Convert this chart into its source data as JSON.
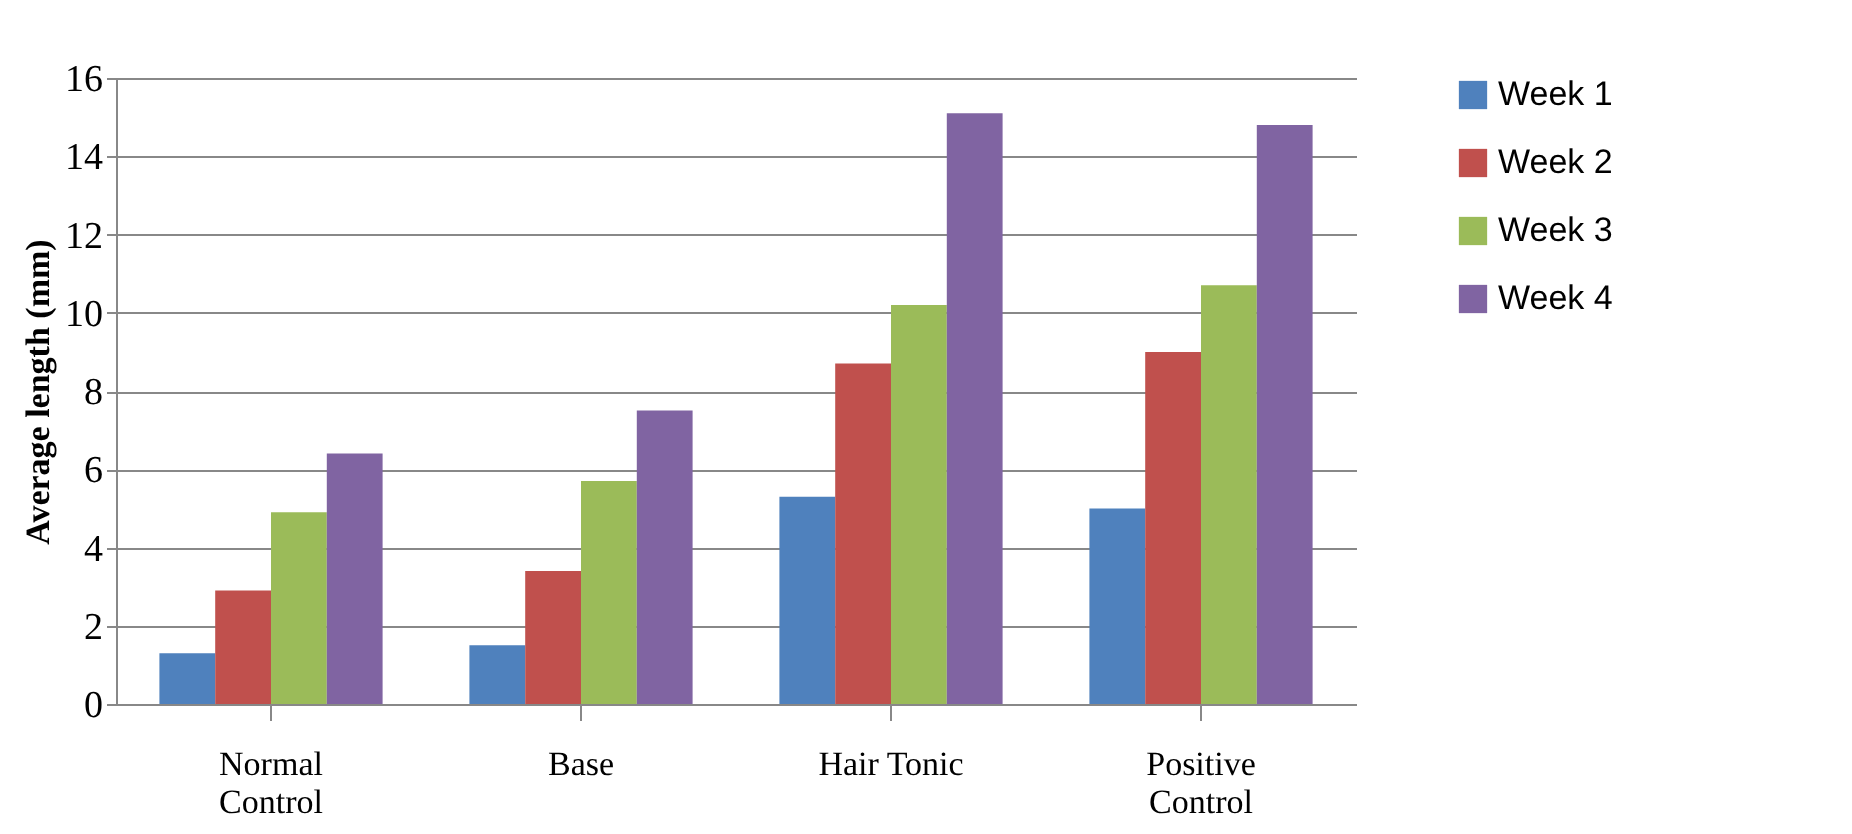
{
  "chart_data": {
    "type": "bar",
    "ylabel": "Average length (mm)",
    "categories": [
      "Normal Control",
      "Base",
      "Hair Tonic",
      "Positive Control"
    ],
    "series": [
      {
        "name": "Week 1",
        "color": "#4f81bd",
        "values": [
          1.3,
          1.5,
          5.3,
          5.0
        ]
      },
      {
        "name": "Week 2",
        "color": "#c0504d",
        "values": [
          2.9,
          3.4,
          8.7,
          9.0
        ]
      },
      {
        "name": "Week 3",
        "color": "#9bbb59",
        "values": [
          4.9,
          5.7,
          10.2,
          10.7
        ]
      },
      {
        "name": "Week 4",
        "color": "#8064a2",
        "values": [
          6.4,
          7.5,
          15.1,
          14.8
        ]
      }
    ],
    "ylim": [
      0,
      16
    ],
    "yticks": [
      0,
      2,
      4,
      6,
      8,
      10,
      12,
      14,
      16
    ],
    "grid": "y",
    "legend": "right"
  }
}
